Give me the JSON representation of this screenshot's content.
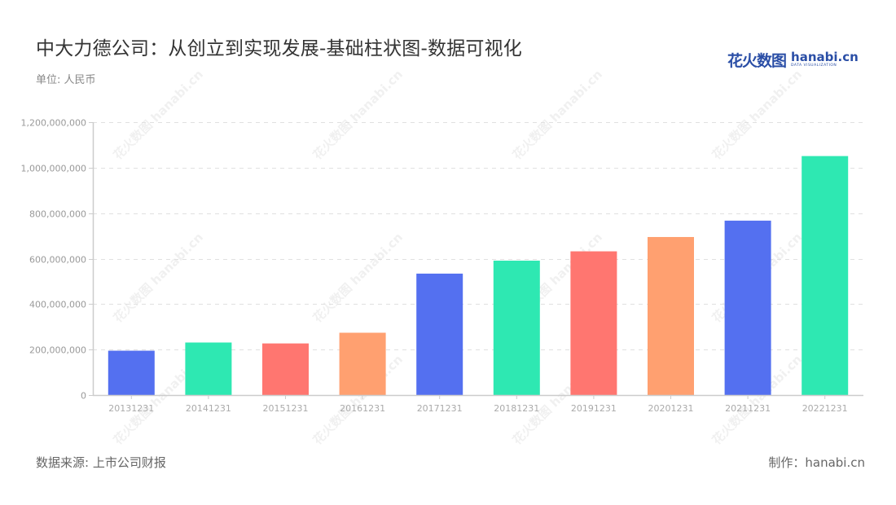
{
  "header": {
    "title": "中大力德公司：从创立到实现发展-基础柱状图-数据可视化",
    "unit": "单位: 人民币"
  },
  "logo": {
    "cn_text": "花火数图",
    "en_text": "hanabi.cn",
    "en_sub": "DATA VISUALIZATION"
  },
  "footer": {
    "source": "数据来源: 上市公司财报",
    "credit": "制作：hanabi.cn"
  },
  "watermark": "花火数图 hanabi.cn",
  "colors": {
    "palette": [
      "#5470f0",
      "#2ee8b2",
      "#ff7670",
      "#ffa070"
    ],
    "grid": "#e0e0e0",
    "axis": "#cccccc"
  },
  "chart_data": {
    "type": "bar",
    "title": "中大力德公司：从创立到实现发展-基础柱状图-数据可视化",
    "subtitle": "单位: 人民币",
    "xlabel": "",
    "ylabel": "",
    "categories": [
      "20131231",
      "20141231",
      "20151231",
      "20161231",
      "20171231",
      "20181231",
      "20191231",
      "20201231",
      "20211231",
      "20221231"
    ],
    "values": [
      195000000,
      231000000,
      227000000,
      274000000,
      534000000,
      591000000,
      632000000,
      695000000,
      767000000,
      1051000000
    ],
    "bar_colors": [
      "#5470f0",
      "#2ee8b2",
      "#ff7670",
      "#ffa070",
      "#5470f0",
      "#2ee8b2",
      "#ff7670",
      "#ffa070",
      "#5470f0",
      "#2ee8b2"
    ],
    "ylim": [
      0,
      1200000000
    ],
    "yticks": [
      0,
      200000000,
      400000000,
      600000000,
      800000000,
      1000000000,
      1200000000
    ],
    "ytick_labels": [
      "0",
      "200,000,000",
      "400,000,000",
      "600,000,000",
      "800,000,000",
      "1,000,000,000",
      "1,200,000,000"
    ],
    "grid": true,
    "grid_style": "dashed",
    "legend": "none"
  }
}
